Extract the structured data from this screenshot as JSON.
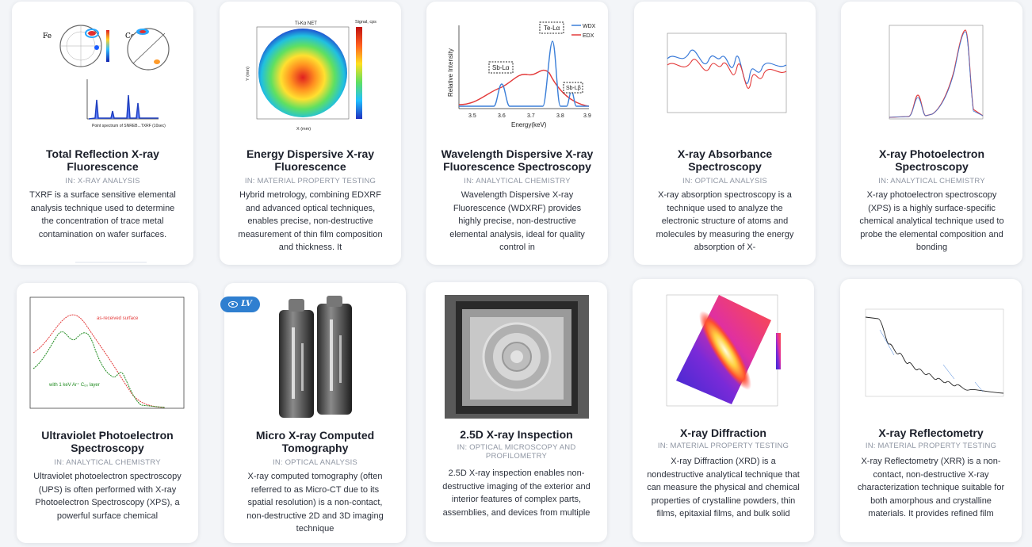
{
  "cards": [
    {
      "title": "Total Reflection X-ray Fluorescence",
      "category": "IN: X-RAY ANALYSIS",
      "description": "TXRF is a surface sensitive elemental analysis technique used to determine the concentration of trace metal contamination on wafer surfaces.",
      "image": "txrf-wafer-maps-and-spectrum"
    },
    {
      "title": "Energy Dispersive X-ray Fluorescence",
      "category": "IN: MATERIAL PROPERTY TESTING",
      "description": "Hybrid metrology, combining EDXRF and advanced optical techniques, enables precise, non-destructive measurement of thin film composition and thickness. It",
      "image": "edxrf-wafer-heatmap"
    },
    {
      "title": "Wavelength Dispersive X-ray Fluorescence Spectroscopy",
      "category": "IN: ANALYTICAL CHEMISTRY",
      "description": "Wavelength Dispersive X-ray Fluorescence (WDXRF) provides highly precise, non-destructive elemental analysis, ideal for quality control in",
      "image": "wdx-vs-edx-spectrum"
    },
    {
      "title": "X-ray Absorbance Spectroscopy",
      "category": "IN: OPTICAL ANALYSIS",
      "description": "X-ray absorption spectroscopy is a technique used to analyze the electronic structure of atoms and molecules by measuring the energy absorption of X-",
      "image": "xas-oscillation-plot"
    },
    {
      "title": "X-ray Photoelectron Spectroscopy",
      "category": "IN: ANALYTICAL CHEMISTRY",
      "description": "X-ray photoelectron spectroscopy (XPS) is a highly surface-specific chemical analytical technique used to probe the elemental composition and bonding",
      "image": "xps-c1s-spectrum"
    },
    {
      "title": "Ultraviolet Photoelectron Spectroscopy",
      "category": "IN: ANALYTICAL CHEMISTRY",
      "description": "Ultraviolet photoelectron spectroscopy (UPS) is often performed with X-ray Photoelectron Spectroscopy (XPS), a powerful surface chemical",
      "image": "ups-spectrum"
    },
    {
      "title": "Micro X-ray Computed Tomography",
      "category": "IN: OPTICAL ANALYSIS",
      "description": "X-ray computed tomography (often referred to as Micro-CT due to its spatial resolution) is a non-contact, non-destructive 2D and 3D imaging technique",
      "image": "micro-ct-batteries",
      "badge": "LV"
    },
    {
      "title": "2.5D X-ray Inspection",
      "category": "IN: OPTICAL MICROSCOPY AND PROFILOMETRY",
      "description": "2.5D X-ray inspection enables non-destructive imaging of the exterior and interior features of complex parts, assemblies, and devices from multiple",
      "image": "xray-package-inspection"
    },
    {
      "title": "X-ray Diffraction",
      "category": "IN: MATERIAL PROPERTY TESTING",
      "description": "X-ray Diffraction (XRD) is a nondestructive analytical technique that can measure the physical and chemical properties of crystalline powders, thin films, epitaxial films, and bulk solid",
      "image": "xrd-reciprocal-space-map"
    },
    {
      "title": "X-ray Reflectometry",
      "category": "IN: MATERIAL PROPERTY TESTING",
      "description": "X-ray Reflectometry (XRR) is a non-contact, non-destructive X-ray characterization technique suitable for both amorphous and crystalline materials. It provides refined film",
      "image": "xrr-reflectivity-curve"
    }
  ],
  "thumb_labels": {
    "txrf_fe": "Fe",
    "txrf_co": "Co",
    "edx_title": "Ti-Kα NET",
    "edx_legend": "Signal, cps",
    "edx_xlabel": "X (mm)",
    "edx_ylabel": "Y (mm)",
    "wdx_legend_1": "WDX",
    "wdx_legend_2": "EDX",
    "wdx_te": "Te-Lα",
    "wdx_sb": "Sb-Lα",
    "wdx_sbl": "Sb-Lβ",
    "wdx_xlabel": "Energy(keV)",
    "wdx_ylabel": "Relative Intensity",
    "wdx_ticks": [
      "3.5",
      "3.6",
      "3.7",
      "3.8",
      "3.9"
    ],
    "ups_label_1": "as-received surface",
    "ups_label_2": "with 1 keV Ar⁺ C₆₀ layer"
  }
}
